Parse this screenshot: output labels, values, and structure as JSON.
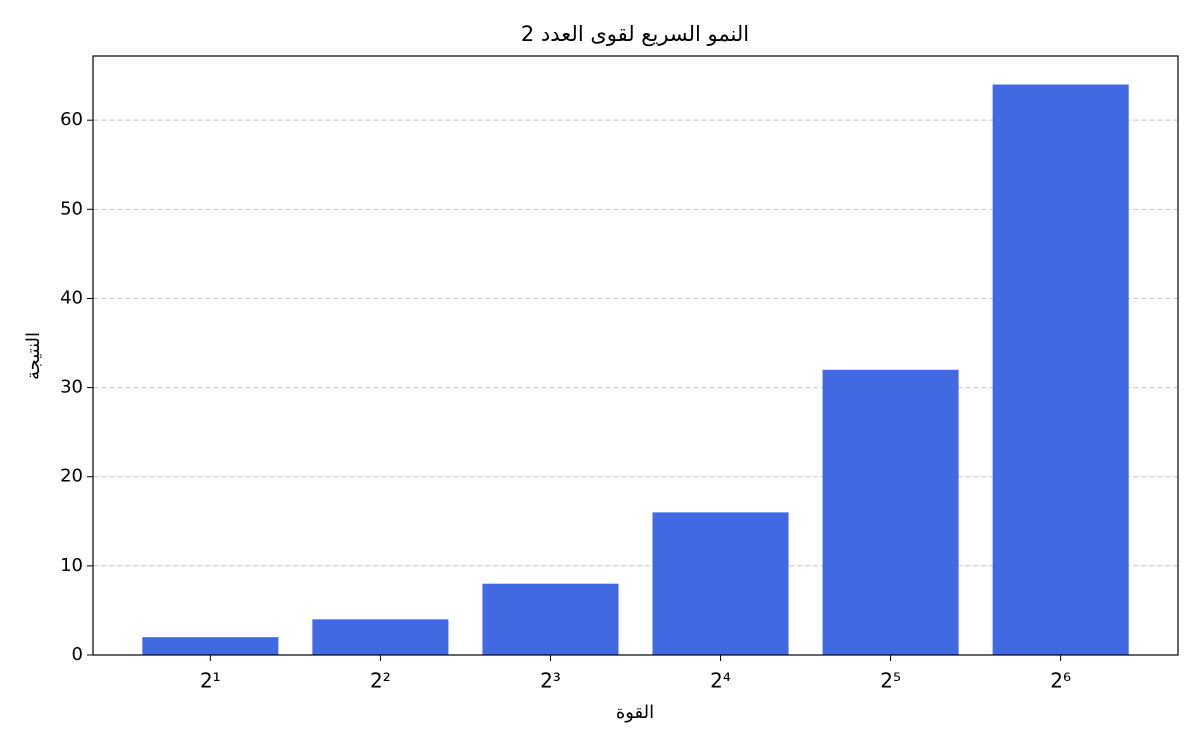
{
  "chart_data": {
    "type": "bar",
    "title": "النمو السريع لقوى العدد 2",
    "x_label": "القوة",
    "y_label": "النتيجة",
    "categories": [
      "2¹",
      "2²",
      "2³",
      "2⁴",
      "2⁵",
      "2⁶"
    ],
    "values": [
      2,
      4,
      8,
      16,
      32,
      64
    ],
    "color": "#4169e1",
    "ylim": [
      0,
      67.2
    ],
    "yticks": [
      0,
      10,
      20,
      30,
      40,
      50,
      60
    ],
    "grid": true
  }
}
